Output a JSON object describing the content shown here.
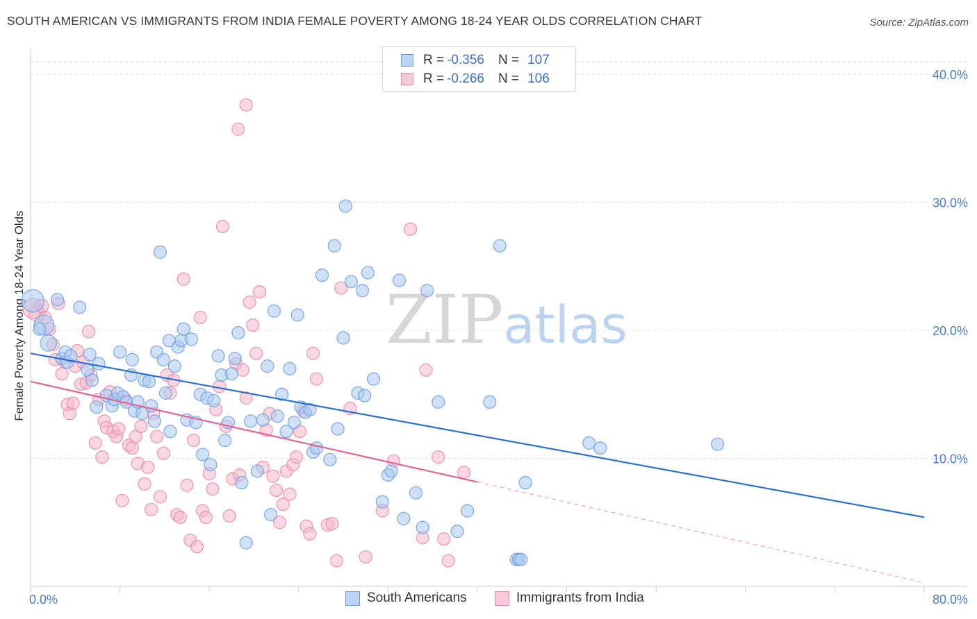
{
  "title": "SOUTH AMERICAN VS IMMIGRANTS FROM INDIA FEMALE POVERTY AMONG 18-24 YEAR OLDS CORRELATION CHART",
  "source": "Source: ZipAtlas.com",
  "watermark": {
    "zip": "ZIP",
    "atlas": "atlas"
  },
  "legend": {
    "rows": [
      {
        "r_label": "R =",
        "r_value": "-0.356",
        "n_label": "N =",
        "n_value": "107"
      },
      {
        "r_label": "R =",
        "r_value": "-0.266",
        "n_label": "N =",
        "n_value": "106"
      }
    ]
  },
  "bottom_legend": [
    {
      "label": "South Americans"
    },
    {
      "label": "Immigrants from India"
    }
  ],
  "colors": {
    "blue_fill": "#a9c8f0",
    "blue_stroke": "#6c9ee0",
    "blue_line": "#2a6fd0",
    "pink_fill": "#f5b8cb",
    "pink_stroke": "#e88aa8",
    "pink_line": "#e06494",
    "tick_text": "#4a7cc9"
  },
  "chart_data": {
    "type": "scatter",
    "title": "SOUTH AMERICAN VS IMMIGRANTS FROM INDIA FEMALE POVERTY AMONG 18-24 YEAR OLDS CORRELATION CHART",
    "xlabel": "",
    "ylabel": "Female Poverty Among 18-24 Year Olds",
    "xlim": [
      0,
      80
    ],
    "ylim": [
      0,
      42
    ],
    "x_tick_labels": [
      "0.0%",
      "80.0%"
    ],
    "y_ticks": [
      10,
      20,
      30,
      40
    ],
    "y_tick_labels": [
      "10.0%",
      "20.0%",
      "30.0%",
      "40.0%"
    ],
    "grid": true,
    "legend_position": "top-center",
    "series": [
      {
        "name": "South Americans",
        "color": "#a9c8f0",
        "trend": {
          "x": [
            0,
            80
          ],
          "y": [
            18.2,
            5.4
          ],
          "solid_until": 80
        },
        "points": [
          [
            0.2,
            22.3,
            1.8
          ],
          [
            1.2,
            20.4,
            1.6
          ],
          [
            1.6,
            19,
            1.3
          ],
          [
            2.4,
            22.4,
            1
          ],
          [
            2.8,
            17.8,
            1
          ],
          [
            3.1,
            18.3,
            1
          ],
          [
            3.3,
            17.5,
            1
          ],
          [
            3.6,
            18,
            1
          ],
          [
            4.4,
            21.8,
            1
          ],
          [
            5.1,
            16.9,
            1
          ],
          [
            5.3,
            18.1,
            1
          ],
          [
            5.5,
            16.1,
            1
          ],
          [
            5.9,
            14,
            1
          ],
          [
            6.1,
            17.4,
            1
          ],
          [
            6.8,
            14.9,
            1
          ],
          [
            7.3,
            14.1,
            1
          ],
          [
            7.5,
            14.6,
            1
          ],
          [
            7.8,
            15.1,
            1
          ],
          [
            8.0,
            18.3,
            1
          ],
          [
            8.3,
            14.8,
            1
          ],
          [
            8.6,
            14.4,
            1
          ],
          [
            9.0,
            16.5,
            1
          ],
          [
            9.1,
            17.7,
            1
          ],
          [
            9.3,
            13.7,
            1
          ],
          [
            9.6,
            14.4,
            1
          ],
          [
            10.0,
            13.5,
            1
          ],
          [
            10.2,
            16.1,
            1
          ],
          [
            10.6,
            16,
            1
          ],
          [
            10.8,
            14.1,
            1
          ],
          [
            11.1,
            12.9,
            1
          ],
          [
            11.3,
            18.3,
            1
          ],
          [
            11.6,
            26.1,
            1
          ],
          [
            11.9,
            17.7,
            1
          ],
          [
            12.1,
            15.1,
            1
          ],
          [
            12.4,
            19.2,
            1
          ],
          [
            12.5,
            12.1,
            1
          ],
          [
            12.9,
            17.2,
            1
          ],
          [
            13.2,
            18.7,
            1
          ],
          [
            13.5,
            19.2,
            1
          ],
          [
            13.7,
            20.1,
            1
          ],
          [
            14.0,
            13,
            1
          ],
          [
            14.4,
            19.3,
            1
          ],
          [
            14.8,
            12.8,
            1
          ],
          [
            15.2,
            15,
            1
          ],
          [
            15.4,
            10.3,
            1
          ],
          [
            15.8,
            14.7,
            1
          ],
          [
            16.1,
            9.5,
            1
          ],
          [
            16.4,
            14.5,
            1
          ],
          [
            16.8,
            18,
            1
          ],
          [
            17.1,
            16.5,
            1
          ],
          [
            17.4,
            11.4,
            1
          ],
          [
            17.7,
            12.8,
            1
          ],
          [
            18.0,
            16.6,
            1
          ],
          [
            18.3,
            17.8,
            1
          ],
          [
            18.6,
            19.8,
            1
          ],
          [
            18.9,
            8.1,
            1
          ],
          [
            19.3,
            3.4,
            1
          ],
          [
            19.7,
            12.9,
            1
          ],
          [
            20.3,
            9,
            1
          ],
          [
            20.8,
            13,
            1
          ],
          [
            21.2,
            17.2,
            1
          ],
          [
            21.5,
            5.6,
            1
          ],
          [
            21.8,
            21.5,
            1
          ],
          [
            22.1,
            13.3,
            1
          ],
          [
            22.5,
            15,
            1
          ],
          [
            22.9,
            12.1,
            1
          ],
          [
            23.2,
            17,
            1
          ],
          [
            23.6,
            12.8,
            1
          ],
          [
            23.9,
            21.2,
            1
          ],
          [
            24.2,
            14,
            1
          ],
          [
            24.6,
            13.6,
            1
          ],
          [
            25.0,
            13.8,
            1
          ],
          [
            25.3,
            10.5,
            1
          ],
          [
            25.6,
            10.8,
            1
          ],
          [
            26.1,
            24.3,
            1
          ],
          [
            26.8,
            9.9,
            1
          ],
          [
            27.2,
            26.6,
            1
          ],
          [
            27.5,
            12.3,
            1
          ],
          [
            28.0,
            19.4,
            1
          ],
          [
            28.2,
            29.7,
            1
          ],
          [
            28.7,
            23.8,
            1
          ],
          [
            29.3,
            15.1,
            1
          ],
          [
            29.7,
            23.1,
            1
          ],
          [
            29.9,
            14.9,
            1
          ],
          [
            30.2,
            24.5,
            1
          ],
          [
            30.7,
            16.2,
            1
          ],
          [
            31.5,
            6.6,
            1
          ],
          [
            32.0,
            8.7,
            1
          ],
          [
            32.3,
            9,
            1
          ],
          [
            33.0,
            23.9,
            1
          ],
          [
            33.4,
            5.3,
            1
          ],
          [
            34.5,
            7.3,
            1
          ],
          [
            35.1,
            4.6,
            1
          ],
          [
            35.5,
            23.1,
            1
          ],
          [
            36.5,
            14.4,
            1
          ],
          [
            38.2,
            4.3,
            1
          ],
          [
            39.1,
            5.9,
            1
          ],
          [
            41.1,
            14.4,
            1
          ],
          [
            42.0,
            26.6,
            1
          ],
          [
            43.5,
            2.1,
            1
          ],
          [
            43.7,
            2.1,
            1
          ],
          [
            43.9,
            2.1,
            1
          ],
          [
            44.3,
            8.1,
            1
          ],
          [
            50.0,
            11.2,
            1
          ],
          [
            51.0,
            10.8,
            1
          ],
          [
            61.5,
            11.1,
            1
          ],
          [
            0.8,
            20.1,
            1
          ]
        ]
      },
      {
        "name": "Immigrants from India",
        "color": "#f5b8cb",
        "trend": {
          "x": [
            0,
            80
          ],
          "y": [
            16.0,
            0.3
          ],
          "solid_until": 40
        },
        "points": [
          [
            0.2,
            21.7,
            1.6
          ],
          [
            0.6,
            21.3,
            1.3
          ],
          [
            1.0,
            21.9,
            1.1
          ],
          [
            1.3,
            21,
            1
          ],
          [
            1.7,
            20.1,
            1
          ],
          [
            2.0,
            18.9,
            1
          ],
          [
            2.2,
            17.7,
            1
          ],
          [
            2.5,
            22.1,
            1
          ],
          [
            2.8,
            16.6,
            1
          ],
          [
            3.1,
            17.5,
            1
          ],
          [
            3.3,
            14.2,
            1
          ],
          [
            3.5,
            13.5,
            1
          ],
          [
            3.8,
            14.3,
            1
          ],
          [
            4.0,
            17.2,
            1
          ],
          [
            4.2,
            18.4,
            1
          ],
          [
            4.5,
            15.8,
            1
          ],
          [
            4.7,
            17.5,
            1
          ],
          [
            5.0,
            15.9,
            1
          ],
          [
            5.2,
            19.9,
            1
          ],
          [
            5.4,
            16.5,
            1
          ],
          [
            5.8,
            11.2,
            1
          ],
          [
            6.1,
            14.6,
            1
          ],
          [
            6.4,
            10.1,
            1
          ],
          [
            6.6,
            12.9,
            1
          ],
          [
            6.8,
            12.4,
            1
          ],
          [
            7.1,
            15.2,
            1
          ],
          [
            7.4,
            12.1,
            1
          ],
          [
            7.7,
            11.7,
            1
          ],
          [
            7.9,
            12.3,
            1
          ],
          [
            8.2,
            6.7,
            1
          ],
          [
            8.5,
            14.6,
            1
          ],
          [
            8.8,
            11,
            1
          ],
          [
            9.1,
            10.8,
            1
          ],
          [
            9.4,
            11.7,
            1
          ],
          [
            9.6,
            9.6,
            1
          ],
          [
            9.9,
            12.5,
            1
          ],
          [
            10.2,
            8,
            1
          ],
          [
            10.5,
            9.3,
            1
          ],
          [
            10.8,
            6,
            1
          ],
          [
            11.0,
            13.5,
            1
          ],
          [
            11.3,
            11.7,
            1
          ],
          [
            11.6,
            7,
            1
          ],
          [
            11.9,
            10.4,
            1
          ],
          [
            12.2,
            16.5,
            1
          ],
          [
            12.5,
            15.1,
            1
          ],
          [
            12.8,
            16.1,
            1
          ],
          [
            13.1,
            5.6,
            1
          ],
          [
            13.4,
            5.4,
            1
          ],
          [
            13.7,
            24,
            1
          ],
          [
            14.0,
            7.9,
            1
          ],
          [
            14.3,
            3.6,
            1
          ],
          [
            14.6,
            11.4,
            1
          ],
          [
            14.9,
            3.1,
            1
          ],
          [
            15.2,
            21,
            1
          ],
          [
            15.4,
            5.9,
            1
          ],
          [
            15.7,
            5.4,
            1
          ],
          [
            16.0,
            8.8,
            1
          ],
          [
            16.3,
            7.6,
            1
          ],
          [
            16.6,
            13.8,
            1
          ],
          [
            16.9,
            15.6,
            1
          ],
          [
            17.2,
            28.1,
            1
          ],
          [
            17.5,
            12.5,
            1
          ],
          [
            17.8,
            5.5,
            1
          ],
          [
            18.1,
            8.4,
            1
          ],
          [
            18.4,
            17.4,
            1
          ],
          [
            18.7,
            8.7,
            1
          ],
          [
            19.0,
            16.9,
            1
          ],
          [
            19.3,
            14.7,
            1
          ],
          [
            19.6,
            22.2,
            1
          ],
          [
            19.9,
            20.4,
            1
          ],
          [
            20.2,
            18.2,
            1
          ],
          [
            20.5,
            23,
            1
          ],
          [
            20.8,
            9.3,
            1
          ],
          [
            21.1,
            12.2,
            1
          ],
          [
            21.4,
            13.5,
            1
          ],
          [
            21.7,
            8.6,
            1
          ],
          [
            22.0,
            7.5,
            1
          ],
          [
            22.3,
            5,
            1
          ],
          [
            22.6,
            6.4,
            1
          ],
          [
            22.9,
            9,
            1
          ],
          [
            23.2,
            7.2,
            1
          ],
          [
            23.5,
            9.5,
            1
          ],
          [
            23.8,
            10.1,
            1
          ],
          [
            24.1,
            12.1,
            1
          ],
          [
            24.4,
            13.7,
            1
          ],
          [
            24.7,
            4.7,
            1
          ],
          [
            25.0,
            4.1,
            1
          ],
          [
            25.3,
            18.2,
            1
          ],
          [
            25.6,
            16.2,
            1
          ],
          [
            26.6,
            4.8,
            1
          ],
          [
            27.0,
            4.9,
            1
          ],
          [
            27.4,
            2,
            1
          ],
          [
            27.8,
            23.3,
            1
          ],
          [
            28.6,
            13.9,
            1
          ],
          [
            30.0,
            2.3,
            1
          ],
          [
            31.5,
            5.9,
            1
          ],
          [
            32.5,
            9.8,
            1
          ],
          [
            34.0,
            27.9,
            1
          ],
          [
            35.1,
            3.8,
            1
          ],
          [
            35.4,
            16.9,
            1
          ],
          [
            36.5,
            10.1,
            1
          ],
          [
            37.4,
            2,
            1
          ],
          [
            37.0,
            3.7,
            1
          ],
          [
            38.8,
            8.9,
            1
          ],
          [
            18.6,
            35.7,
            1
          ],
          [
            19.3,
            37.6,
            1
          ]
        ]
      }
    ]
  }
}
